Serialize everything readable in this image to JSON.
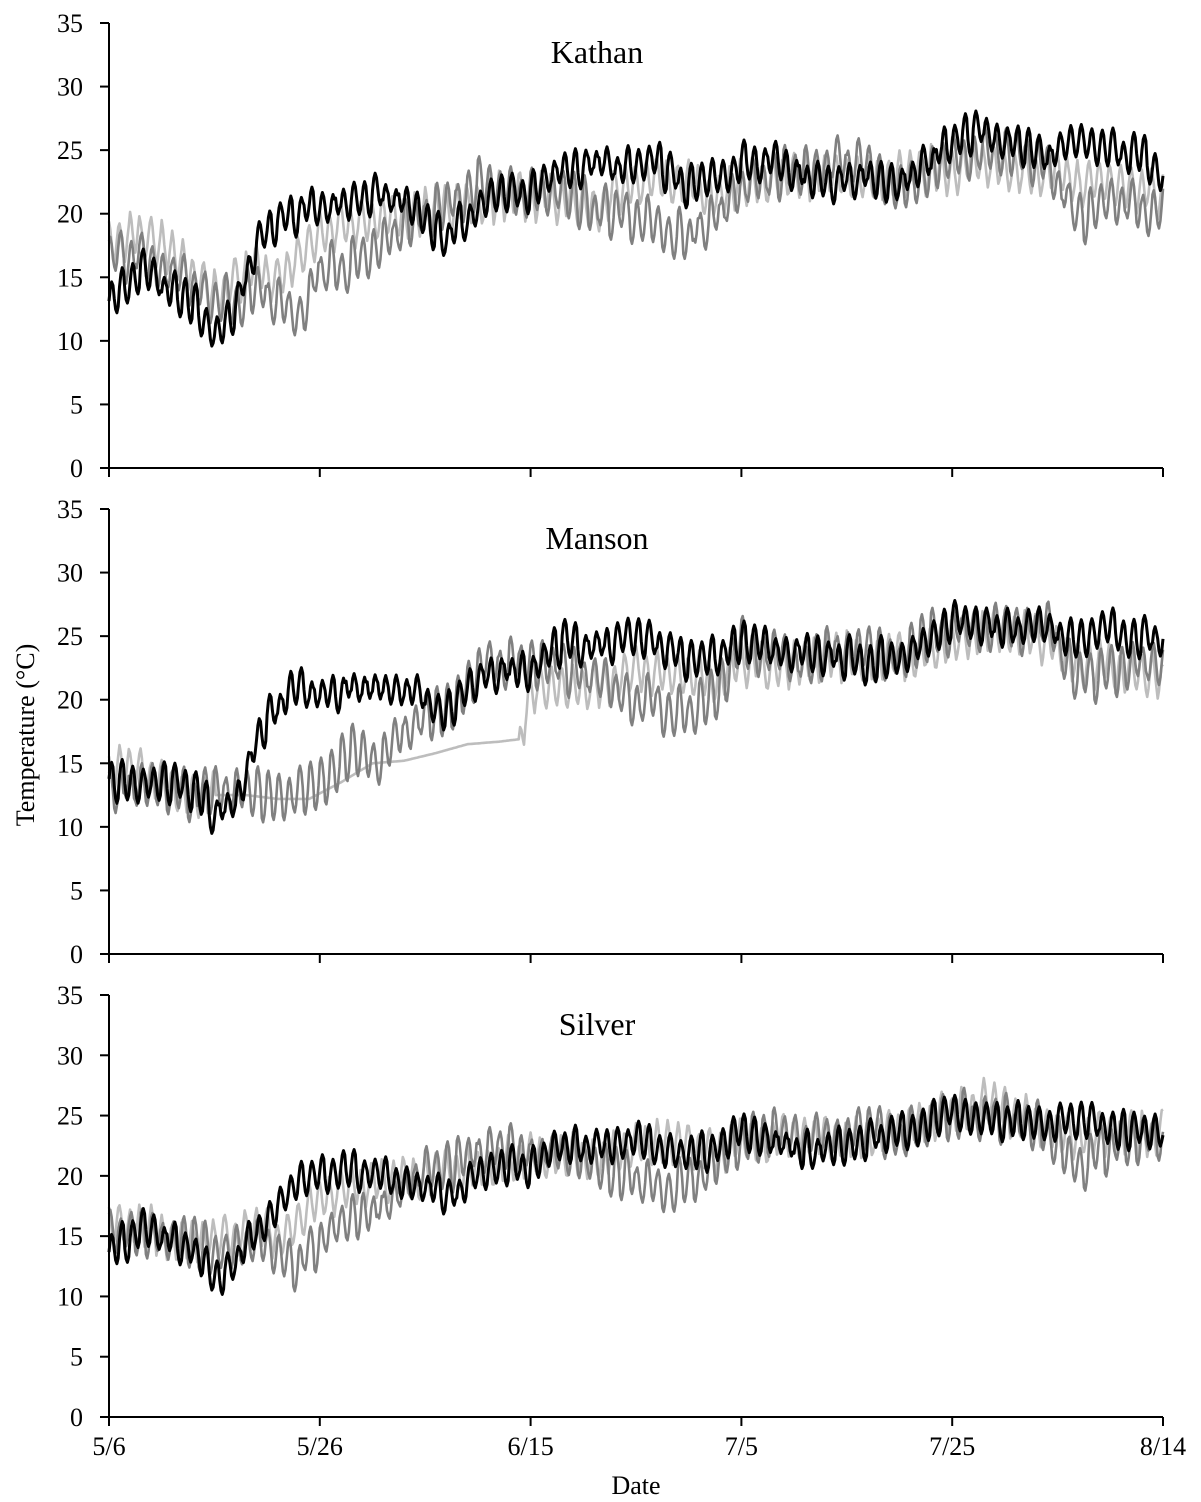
{
  "figure": {
    "ylabel": "Temperature (°C)",
    "xlabel": "Date"
  },
  "colors": {
    "black": "#000000",
    "dark_gray": "#808080",
    "light_gray": "#bdbdbd",
    "axis": "#000000"
  },
  "chart_data": [
    {
      "type": "line",
      "title": "Kathan",
      "xlabel": "",
      "ylabel": "",
      "ylim": [
        0,
        35
      ],
      "yticks": [
        0,
        5,
        10,
        15,
        20,
        25,
        30,
        35
      ],
      "xlim": [
        "5/6",
        "8/14"
      ],
      "xticks": [
        "5/6",
        "5/26",
        "6/15",
        "7/5",
        "7/25",
        "8/14"
      ],
      "grid": false,
      "legend": "none",
      "series": [
        {
          "color": "#000000",
          "x": [
            "5/6",
            "5/9",
            "5/12",
            "5/14",
            "5/16",
            "5/18",
            "5/20",
            "5/22",
            "5/24",
            "5/26",
            "5/29",
            "6/1",
            "6/4",
            "6/7",
            "6/10",
            "6/13",
            "6/15",
            "6/18",
            "6/21",
            "6/24",
            "6/27",
            "6/30",
            "7/3",
            "7/5",
            "7/8",
            "7/11",
            "7/14",
            "7/17",
            "7/20",
            "7/23",
            "7/25",
            "7/28",
            "7/31",
            "8/3",
            "8/6",
            "8/9",
            "8/12",
            "8/14"
          ],
          "y": [
            13.0,
            15.5,
            13.8,
            13.0,
            10.5,
            12.5,
            17.5,
            19.5,
            20.0,
            20.5,
            21.0,
            21.5,
            20.5,
            18.0,
            20.5,
            22.0,
            21.5,
            23.5,
            24.0,
            23.5,
            24.0,
            22.0,
            23.0,
            24.0,
            24.5,
            23.0,
            22.5,
            23.0,
            22.5,
            24.0,
            26.0,
            26.5,
            25.5,
            24.5,
            25.5,
            25.0,
            24.5,
            23.5
          ]
        },
        {
          "color": "#808080",
          "x": [
            "5/6",
            "5/9",
            "5/12",
            "5/14",
            "5/16",
            "5/18",
            "5/20",
            "5/22",
            "5/24",
            "5/26",
            "5/29",
            "6/1",
            "6/4",
            "6/7",
            "6/10",
            "6/13",
            "6/15",
            "6/18",
            "6/21",
            "6/24",
            "6/27",
            "6/30",
            "7/3",
            "7/5",
            "7/8",
            "7/11",
            "7/14",
            "7/17",
            "7/20",
            "7/23",
            "7/25",
            "7/28",
            "7/31",
            "8/3",
            "8/6",
            "8/9",
            "8/12",
            "8/14"
          ],
          "y": [
            16.5,
            17.0,
            15.5,
            14.5,
            13.5,
            13.0,
            14.0,
            13.0,
            12.0,
            15.5,
            16.0,
            17.5,
            19.5,
            20.5,
            22.5,
            21.5,
            22.0,
            21.5,
            20.5,
            20.0,
            19.0,
            18.5,
            20.0,
            22.0,
            23.0,
            23.5,
            24.0,
            23.5,
            22.5,
            23.0,
            24.5,
            25.0,
            24.5,
            24.0,
            19.5,
            21.0,
            20.5,
            20.5
          ]
        },
        {
          "color": "#bdbdbd",
          "x": [
            "5/6",
            "5/9",
            "5/12",
            "5/14",
            "5/16",
            "5/18",
            "5/20",
            "5/22",
            "5/24",
            "5/26",
            "5/29",
            "6/1",
            "6/4",
            "6/7",
            "6/10",
            "6/13",
            "6/15",
            "6/18",
            "6/21",
            "6/24",
            "6/27",
            "6/30",
            "7/3",
            "7/5",
            "7/8",
            "7/11",
            "7/14",
            "7/17",
            "7/20",
            "7/23",
            "7/25",
            "7/28",
            "7/31",
            "8/3",
            "8/6",
            "8/9",
            "8/12",
            "8/14"
          ],
          "y": [
            17.5,
            18.5,
            17.0,
            15.0,
            13.5,
            15.0,
            15.5,
            14.5,
            16.5,
            18.5,
            19.0,
            19.5,
            20.0,
            20.5,
            21.0,
            21.5,
            21.5,
            21.0,
            20.5,
            22.0,
            22.5,
            22.5,
            21.5,
            22.5,
            23.0,
            23.0,
            22.5,
            22.5,
            23.0,
            23.5,
            23.5,
            24.0,
            23.5,
            23.0,
            22.5,
            22.0,
            22.0,
            21.5
          ]
        }
      ]
    },
    {
      "type": "line",
      "title": "Manson",
      "xlabel": "",
      "ylabel": "",
      "ylim": [
        0,
        35
      ],
      "yticks": [
        0,
        5,
        10,
        15,
        20,
        25,
        30,
        35
      ],
      "xlim": [
        "5/6",
        "8/14"
      ],
      "xticks": [
        "5/6",
        "5/26",
        "6/15",
        "7/5",
        "7/25",
        "8/14"
      ],
      "grid": false,
      "legend": "none",
      "series": [
        {
          "color": "#000000",
          "x": [
            "5/6",
            "5/9",
            "5/12",
            "5/14",
            "5/16",
            "5/18",
            "5/20",
            "5/22",
            "5/24",
            "5/26",
            "5/29",
            "6/1",
            "6/4",
            "6/7",
            "6/10",
            "6/13",
            "6/15",
            "6/18",
            "6/21",
            "6/24",
            "6/27",
            "6/30",
            "7/3",
            "7/5",
            "7/8",
            "7/11",
            "7/14",
            "7/17",
            "7/20",
            "7/23",
            "7/25",
            "7/28",
            "7/31",
            "8/3",
            "8/6",
            "8/9",
            "8/12",
            "8/14"
          ],
          "y": [
            13.5,
            13.5,
            13.5,
            13.0,
            11.0,
            12.0,
            17.0,
            19.5,
            21.0,
            20.5,
            21.0,
            21.0,
            20.5,
            19.0,
            21.5,
            22.5,
            22.0,
            24.5,
            24.0,
            25.0,
            24.5,
            23.0,
            23.5,
            24.5,
            24.0,
            23.5,
            23.5,
            23.0,
            23.5,
            25.0,
            26.0,
            26.0,
            25.5,
            25.5,
            25.0,
            25.5,
            25.0,
            24.5
          ]
        },
        {
          "color": "#808080",
          "x": [
            "5/6",
            "5/9",
            "5/12",
            "5/14",
            "5/16",
            "5/18",
            "5/20",
            "5/22",
            "5/24",
            "5/26",
            "5/29",
            "6/1",
            "6/4",
            "6/7",
            "6/10",
            "6/13",
            "6/15",
            "6/18",
            "6/21",
            "6/24",
            "6/27",
            "6/30",
            "7/3",
            "7/5",
            "7/8",
            "7/11",
            "7/14",
            "7/17",
            "7/20",
            "7/23",
            "7/25",
            "7/28",
            "7/31",
            "8/3",
            "8/6",
            "8/9",
            "8/12",
            "8/14"
          ],
          "y": [
            13.5,
            13.0,
            13.0,
            12.5,
            12.5,
            12.5,
            12.5,
            12.5,
            12.5,
            13.5,
            16.0,
            15.0,
            18.5,
            19.0,
            22.5,
            23.0,
            23.0,
            22.5,
            21.5,
            20.5,
            19.5,
            19.0,
            21.0,
            24.5,
            23.5,
            23.0,
            24.0,
            24.0,
            23.0,
            25.0,
            25.5,
            26.0,
            25.5,
            26.0,
            21.5,
            22.0,
            23.0,
            22.5
          ]
        },
        {
          "color": "#bdbdbd",
          "x": [
            "5/6",
            "5/8",
            "5/10",
            "5/13",
            "5/16",
            "5/19",
            "5/22",
            "5/25",
            "5/28",
            "5/31",
            "6/3",
            "6/6",
            "6/9",
            "6/12",
            "6/14",
            "6/15",
            "6/18",
            "6/21",
            "6/24",
            "6/27",
            "6/30",
            "7/3",
            "7/5",
            "7/8",
            "7/11",
            "7/14",
            "7/17",
            "7/20",
            "7/23",
            "7/25",
            "7/28",
            "7/31",
            "8/3",
            "8/6",
            "8/9",
            "8/12",
            "8/14"
          ],
          "y": [
            14.5,
            15.0,
            13.5,
            13.0,
            12.5,
            12.5,
            12.2,
            12.2,
            13.5,
            15.0,
            15.2,
            15.8,
            16.5,
            16.7,
            16.9,
            20.5,
            21.5,
            21.0,
            22.0,
            22.5,
            22.0,
            21.5,
            23.0,
            22.5,
            23.0,
            23.5,
            23.0,
            23.5,
            24.0,
            25.0,
            25.5,
            25.5,
            24.5,
            23.0,
            22.5,
            22.0,
            21.5
          ]
        }
      ]
    },
    {
      "type": "line",
      "title": "Silver",
      "xlabel": "Date",
      "ylabel": "",
      "ylim": [
        0,
        35
      ],
      "yticks": [
        0,
        5,
        10,
        15,
        20,
        25,
        30,
        35
      ],
      "xlim": [
        "5/6",
        "8/14"
      ],
      "xticks": [
        "5/6",
        "5/26",
        "6/15",
        "7/5",
        "7/25",
        "8/14"
      ],
      "grid": false,
      "legend": "none",
      "series": [
        {
          "color": "#000000",
          "x": [
            "5/6",
            "5/9",
            "5/12",
            "5/14",
            "5/16",
            "5/18",
            "5/20",
            "5/22",
            "5/24",
            "5/26",
            "5/29",
            "6/1",
            "6/4",
            "6/7",
            "6/10",
            "6/13",
            "6/15",
            "6/18",
            "6/21",
            "6/24",
            "6/27",
            "6/30",
            "7/3",
            "7/5",
            "7/8",
            "7/11",
            "7/14",
            "7/17",
            "7/20",
            "7/23",
            "7/25",
            "7/28",
            "7/31",
            "8/3",
            "8/6",
            "8/9",
            "8/12",
            "8/14"
          ],
          "y": [
            13.5,
            15.5,
            14.5,
            14.0,
            11.5,
            12.5,
            15.5,
            17.5,
            19.5,
            20.0,
            20.5,
            20.0,
            19.5,
            18.0,
            20.0,
            21.0,
            20.5,
            22.5,
            22.5,
            23.0,
            22.5,
            21.5,
            22.5,
            23.5,
            23.0,
            22.0,
            22.5,
            23.0,
            23.5,
            24.5,
            25.5,
            25.0,
            24.5,
            24.5,
            24.5,
            24.0,
            23.5,
            23.5
          ]
        },
        {
          "color": "#808080",
          "x": [
            "5/6",
            "5/9",
            "5/12",
            "5/14",
            "5/16",
            "5/18",
            "5/20",
            "5/22",
            "5/24",
            "5/26",
            "5/29",
            "6/1",
            "6/4",
            "6/7",
            "6/10",
            "6/13",
            "6/15",
            "6/18",
            "6/21",
            "6/24",
            "6/27",
            "6/30",
            "7/3",
            "7/5",
            "7/8",
            "7/11",
            "7/14",
            "7/17",
            "7/20",
            "7/23",
            "7/25",
            "7/28",
            "7/31",
            "8/3",
            "8/6",
            "8/9",
            "8/12",
            "8/14"
          ],
          "y": [
            15.0,
            15.5,
            15.0,
            14.5,
            14.0,
            14.0,
            14.5,
            13.5,
            12.5,
            14.5,
            16.5,
            17.5,
            20.0,
            20.5,
            22.0,
            22.5,
            22.0,
            22.0,
            21.0,
            20.0,
            19.0,
            19.5,
            21.5,
            23.0,
            23.5,
            23.0,
            23.5,
            24.0,
            23.0,
            24.5,
            25.0,
            25.0,
            24.5,
            24.0,
            20.5,
            22.5,
            23.0,
            23.0
          ]
        },
        {
          "color": "#bdbdbd",
          "x": [
            "5/6",
            "5/9",
            "5/12",
            "5/14",
            "5/16",
            "5/18",
            "5/20",
            "5/22",
            "5/24",
            "5/26",
            "5/29",
            "6/1",
            "6/4",
            "6/7",
            "6/10",
            "6/13",
            "6/15",
            "6/18",
            "6/21",
            "6/24",
            "6/27",
            "6/30",
            "7/3",
            "7/5",
            "7/8",
            "7/11",
            "7/14",
            "7/17",
            "7/20",
            "7/23",
            "7/25",
            "7/28",
            "7/31",
            "8/3",
            "8/6",
            "8/9",
            "8/12",
            "8/14"
          ],
          "y": [
            15.5,
            16.0,
            15.0,
            14.5,
            14.5,
            15.0,
            15.5,
            15.0,
            16.5,
            18.0,
            19.0,
            19.5,
            20.0,
            20.5,
            21.0,
            21.5,
            21.5,
            22.0,
            21.5,
            22.5,
            23.0,
            22.5,
            22.0,
            23.0,
            23.0,
            23.5,
            23.0,
            23.5,
            24.0,
            24.5,
            25.5,
            26.0,
            25.0,
            24.0,
            23.0,
            23.5,
            23.5,
            23.5
          ]
        }
      ]
    }
  ]
}
